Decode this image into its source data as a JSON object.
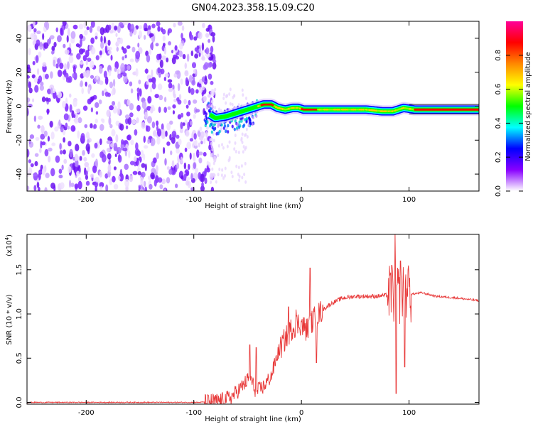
{
  "title": "GN04.2023.358.15.09.C20",
  "chart_data": [
    {
      "type": "heatmap",
      "xlabel": "Height of straight line (km)",
      "ylabel": "Frequency (Hz)",
      "xlim": [
        -255,
        165
      ],
      "ylim": [
        -50,
        50
      ],
      "xticks": [
        -200,
        -100,
        0,
        100
      ],
      "yticks": [
        -40,
        -20,
        0,
        20,
        40
      ],
      "trace": [
        [
          -85,
          -5
        ],
        [
          -80,
          -7
        ],
        [
          -70,
          -6
        ],
        [
          -60,
          -4
        ],
        [
          -50,
          -2
        ],
        [
          -40,
          0
        ],
        [
          -35,
          1
        ],
        [
          -28,
          1
        ],
        [
          -22,
          -1
        ],
        [
          -15,
          -2
        ],
        [
          -8,
          -1
        ],
        [
          -3,
          -1
        ],
        [
          2,
          -2
        ],
        [
          10,
          -2
        ],
        [
          30,
          -2
        ],
        [
          60,
          -2
        ],
        [
          75,
          -3
        ],
        [
          85,
          -3
        ],
        [
          95,
          -1
        ],
        [
          105,
          -2
        ],
        [
          165,
          -2
        ]
      ],
      "noise_region": {
        "from": -255,
        "to": -85
      }
    },
    {
      "type": "line",
      "xlabel": "Height of straight line (km)",
      "ylabel": "SNR (10 * v/v)",
      "multiplier_label": "(x10",
      "multiplier_exp": "4",
      "multiplier_close": ")",
      "xlim": [
        -255,
        165
      ],
      "ylim": [
        -0.02,
        1.9
      ],
      "xticks": [
        -200,
        -100,
        0,
        100
      ],
      "yticks": [
        0.0,
        0.5,
        1.0,
        1.5
      ],
      "ytick_labels": [
        "0.0",
        "0.5",
        "1.0",
        "1.5"
      ],
      "line_color": "#e83a3a",
      "series": [
        {
          "values_anchor": [
            [
              -255,
              0.0
            ],
            [
              -95,
              0.0
            ],
            [
              -85,
              0.01
            ],
            [
              -75,
              0.02
            ],
            [
              -65,
              0.06
            ],
            [
              -55,
              0.18
            ],
            [
              -48,
              0.28
            ],
            [
              -42,
              0.12
            ],
            [
              -35,
              0.18
            ],
            [
              -28,
              0.3
            ],
            [
              -22,
              0.55
            ],
            [
              -15,
              0.72
            ],
            [
              -8,
              0.85
            ],
            [
              -2,
              0.9
            ],
            [
              5,
              0.82
            ],
            [
              12,
              0.95
            ],
            [
              20,
              1.05
            ],
            [
              28,
              1.12
            ],
            [
              38,
              1.18
            ],
            [
              50,
              1.2
            ],
            [
              70,
              1.2
            ],
            [
              85,
              1.22
            ],
            [
              100,
              1.22
            ],
            [
              112,
              1.24
            ],
            [
              125,
              1.2
            ],
            [
              145,
              1.18
            ],
            [
              165,
              1.15
            ]
          ],
          "spikes": [
            [
              -48,
              0.65
            ],
            [
              -42,
              0.62
            ],
            [
              -12,
              1.08
            ],
            [
              -5,
              1.05
            ],
            [
              8,
              1.52
            ],
            [
              14,
              0.45
            ],
            [
              84,
              1.55
            ],
            [
              87,
              1.92
            ],
            [
              88,
              0.1
            ],
            [
              92,
              1.6
            ],
            [
              96,
              0.4
            ],
            [
              99,
              1.5
            ]
          ]
        }
      ]
    }
  ],
  "colorbar": {
    "label": "Normalized spectral amplitude",
    "ticks": [
      0.0,
      0.2,
      0.4,
      0.6,
      0.8
    ],
    "tick_labels": [
      "0.0",
      "0.2",
      "0.4",
      "0.6",
      "0.8"
    ],
    "stops": [
      "#ffffff",
      "#8800ff",
      "#0000ff",
      "#00ffff",
      "#00ff00",
      "#ffff00",
      "#ff8800",
      "#ff0000",
      "#ff0099"
    ]
  }
}
